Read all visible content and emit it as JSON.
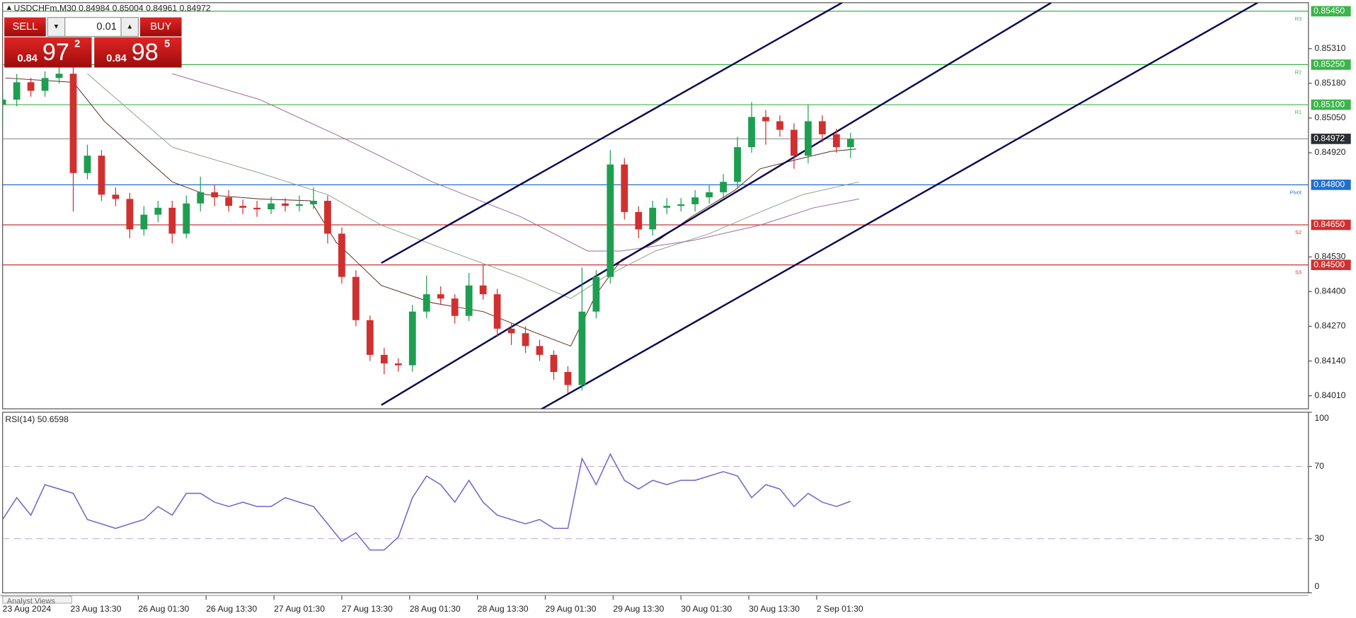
{
  "chart_data": [
    {
      "type": "candlestick",
      "title": "USDCHFm,M30  0.84984 0.85004 0.84961 0.84972",
      "x": [
        0,
        5,
        10,
        15,
        20,
        25,
        30,
        35,
        40,
        45,
        50,
        55,
        60,
        65,
        70,
        75,
        80,
        85,
        90,
        95,
        100,
        105,
        110,
        115,
        120,
        125,
        130,
        135,
        140,
        145,
        150,
        155,
        160,
        165,
        170,
        175,
        180,
        185,
        190,
        195,
        200,
        205,
        210,
        215,
        220,
        225,
        230,
        235,
        240,
        245,
        250,
        255,
        260,
        265,
        270,
        275,
        280,
        285,
        290,
        295,
        300
      ],
      "open": [
        0.851,
        0.85119,
        0.85184,
        0.85152,
        0.852,
        0.85216,
        0.84844,
        0.84909,
        0.84763,
        0.84747,
        0.84633,
        0.84688,
        0.84714,
        0.84617,
        0.8473,
        0.84772,
        0.84753,
        0.84721,
        0.84714,
        0.84708,
        0.8473,
        0.84721,
        0.84727,
        0.8474,
        0.84617,
        0.84455,
        0.84293,
        0.84163,
        0.84131,
        0.84124,
        0.84325,
        0.8439,
        0.84374,
        0.84309,
        0.84423,
        0.8439,
        0.84261,
        0.84244,
        0.84196,
        0.84163,
        0.84099,
        0.8405,
        0.84325,
        0.84455,
        0.84876,
        0.84698,
        0.84633,
        0.84714,
        0.84721,
        0.84727,
        0.84753,
        0.84772,
        0.84811,
        0.84941,
        0.85054,
        0.85038,
        0.85006,
        0.84909,
        0.85038,
        0.84989,
        0.84941
      ],
      "high": [
        0.8515,
        0.85215,
        0.852,
        0.85225,
        0.8525,
        0.8524,
        0.8495,
        0.8493,
        0.8479,
        0.8477,
        0.8472,
        0.8474,
        0.8474,
        0.8476,
        0.8483,
        0.848,
        0.8478,
        0.84745,
        0.8474,
        0.84755,
        0.8475,
        0.8476,
        0.8479,
        0.8476,
        0.8464,
        0.8448,
        0.8431,
        0.8419,
        0.8415,
        0.8435,
        0.8446,
        0.8442,
        0.8439,
        0.8447,
        0.845,
        0.8441,
        0.8428,
        0.8427,
        0.8422,
        0.8418,
        0.8412,
        0.8449,
        0.8448,
        0.8493,
        0.849,
        0.8472,
        0.8474,
        0.8475,
        0.8475,
        0.8478,
        0.848,
        0.8484,
        0.8498,
        0.8511,
        0.8508,
        0.8506,
        0.8503,
        0.851,
        0.8506,
        0.8501,
        0.84995
      ],
      "low": [
        0.8503,
        0.85095,
        0.8513,
        0.8513,
        0.8518,
        0.847,
        0.8482,
        0.8474,
        0.8472,
        0.846,
        0.8461,
        0.8466,
        0.8458,
        0.846,
        0.847,
        0.8472,
        0.847,
        0.8469,
        0.8468,
        0.8469,
        0.847,
        0.847,
        0.8471,
        0.8458,
        0.8443,
        0.8427,
        0.8414,
        0.8409,
        0.841,
        0.841,
        0.843,
        0.8435,
        0.8428,
        0.8429,
        0.8437,
        0.8423,
        0.842,
        0.8417,
        0.8414,
        0.8407,
        0.8402,
        0.8403,
        0.843,
        0.8443,
        0.8467,
        0.846,
        0.8461,
        0.8469,
        0.847,
        0.847,
        0.8473,
        0.8475,
        0.8479,
        0.8492,
        0.8495,
        0.8498,
        0.8486,
        0.8488,
        0.8496,
        0.8492,
        0.849
      ],
      "close": [
        0.85119,
        0.85184,
        0.85152,
        0.852,
        0.85216,
        0.84844,
        0.84909,
        0.84763,
        0.84747,
        0.84633,
        0.84688,
        0.84714,
        0.84617,
        0.8473,
        0.84772,
        0.84753,
        0.84721,
        0.84714,
        0.84708,
        0.8473,
        0.84721,
        0.84727,
        0.8474,
        0.84617,
        0.84455,
        0.84293,
        0.84163,
        0.84131,
        0.84124,
        0.84325,
        0.8439,
        0.84374,
        0.84309,
        0.84423,
        0.8439,
        0.84261,
        0.84244,
        0.84196,
        0.84163,
        0.84099,
        0.8405,
        0.84325,
        0.84455,
        0.84876,
        0.84698,
        0.84633,
        0.84714,
        0.84721,
        0.84727,
        0.84753,
        0.84772,
        0.84811,
        0.84941,
        0.85054,
        0.85038,
        0.85006,
        0.84909,
        0.85038,
        0.84989,
        0.84941,
        0.84972
      ],
      "up_color": "#1e9e50",
      "down_color": "#d03030",
      "overlays": [
        {
          "color": "#5a2a1a",
          "x": [
            1,
            25,
            36,
            60,
            72,
            91,
            109,
            118,
            134,
            152,
            170,
            189,
            201,
            210,
            219,
            231,
            244,
            259,
            268,
            280,
            293,
            302
          ],
          "values": [
            0.852,
            0.85184,
            0.85038,
            0.84811,
            0.84763,
            0.84747,
            0.8474,
            0.84585,
            0.84423,
            0.84358,
            0.84325,
            0.84244,
            0.84196,
            0.8439,
            0.8452,
            0.84585,
            0.84682,
            0.84779,
            0.8486,
            0.84892,
            0.84925,
            0.84934
          ]
        },
        {
          "color": "#8aa08a",
          "x": [
            30,
            60,
            91,
            115,
            134,
            158,
            183,
            201,
            213,
            231,
            250,
            268,
            283,
            303
          ],
          "values": [
            0.85216,
            0.84941,
            0.84844,
            0.84763,
            0.84649,
            0.84552,
            0.84455,
            0.84374,
            0.84455,
            0.84552,
            0.84617,
            0.84698,
            0.84763,
            0.84811
          ]
        },
        {
          "color": "#9b6b9b",
          "x": [
            60,
            91,
            121,
            152,
            183,
            207,
            219,
            244,
            268,
            287,
            303
          ],
          "values": [
            0.85216,
            0.85119,
            0.84973,
            0.84811,
            0.84682,
            0.84552,
            0.84552,
            0.84591,
            0.84649,
            0.84714,
            0.84747
          ]
        }
      ],
      "channels": [
        {
          "x": [
            134,
            297
          ],
          "values": [
            0.84507,
            0.85482
          ]
        },
        {
          "x": [
            134,
            371
          ],
          "values": [
            0.83975,
            0.85482
          ]
        },
        {
          "x": [
            190,
            444
          ],
          "values": [
            0.83956,
            0.85482
          ]
        }
      ],
      "channel_color": "#0a0a50",
      "levels": [
        {
          "name": "R3",
          "value": 0.8545,
          "label": "0.85450",
          "color": "#3cb44b"
        },
        {
          "name": "R2",
          "value": 0.8525,
          "label": "0.85250",
          "color": "#3cb44b"
        },
        {
          "name": "R1",
          "value": 0.851,
          "label": "0.85100",
          "color": "#3cb44b"
        },
        {
          "name": "Pivot",
          "value": 0.848,
          "label": "0.84800",
          "color": "#1f6fd0"
        },
        {
          "name": "S2",
          "value": 0.8465,
          "label": "0.84650",
          "color": "#d03030"
        },
        {
          "name": "S3",
          "value": 0.845,
          "label": "0.84500",
          "color": "#d03030"
        }
      ],
      "current": 0.84972,
      "xlim": [
        0,
        462
      ],
      "ylim": [
        0.83961,
        0.85482
      ],
      "yticks": [
        {
          "value": 0.8531,
          "label": "0.85310"
        },
        {
          "value": 0.8518,
          "label": "0.85180"
        },
        {
          "value": 0.8505,
          "label": "0.85050"
        },
        {
          "value": 0.8492,
          "label": "0.84920"
        },
        {
          "value": 0.8453,
          "label": "0.84530"
        },
        {
          "value": 0.844,
          "label": "0.84400"
        },
        {
          "value": 0.8427,
          "label": "0.84270"
        },
        {
          "value": 0.8414,
          "label": "0.84140"
        },
        {
          "value": 0.8401,
          "label": "0.84010"
        }
      ]
    },
    {
      "type": "line",
      "title": "RSI(14) 50.6598",
      "x": [
        0,
        5,
        10,
        15,
        20,
        25,
        30,
        35,
        40,
        45,
        50,
        55,
        60,
        65,
        70,
        75,
        80,
        85,
        90,
        95,
        100,
        105,
        110,
        115,
        120,
        125,
        130,
        135,
        140,
        145,
        150,
        155,
        160,
        165,
        170,
        175,
        180,
        185,
        190,
        195,
        200,
        205,
        210,
        215,
        220,
        225,
        230,
        235,
        240,
        245,
        250,
        255,
        260,
        265,
        270,
        275,
        280,
        285,
        290,
        295,
        300
      ],
      "series": [
        {
          "color": "#7b68c8",
          "values": [
            40.6,
            52.7,
            43.0,
            59.9,
            57.5,
            55.1,
            40.6,
            38.2,
            35.7,
            38.2,
            40.6,
            47.8,
            43.0,
            55.1,
            55.1,
            50.2,
            47.8,
            50.2,
            47.8,
            47.8,
            52.7,
            50.2,
            47.8,
            38.2,
            28.5,
            33.3,
            23.7,
            23.7,
            30.9,
            52.7,
            64.7,
            59.9,
            50.2,
            62.3,
            50.2,
            43.0,
            40.6,
            38.2,
            40.6,
            35.7,
            35.7,
            74.4,
            59.9,
            76.8,
            62.3,
            57.5,
            62.3,
            59.9,
            62.3,
            62.3,
            64.7,
            67.1,
            64.7,
            52.7,
            59.9,
            57.5,
            47.8,
            55.1,
            50.2,
            47.8,
            50.66
          ]
        }
      ],
      "levels": [
        30,
        70
      ],
      "xlim": [
        0,
        462
      ],
      "ylim": [
        0,
        100
      ],
      "yticks": [
        0,
        30,
        70,
        100
      ],
      "xticks": [
        {
          "value": 0,
          "label": "23 Aug 2024"
        },
        {
          "value": 24,
          "label": "23 Aug 13:30"
        },
        {
          "value": 48,
          "label": "26 Aug 01:30"
        },
        {
          "value": 72,
          "label": "26 Aug 13:30"
        },
        {
          "value": 96,
          "label": "27 Aug 01:30"
        },
        {
          "value": 120,
          "label": "27 Aug 13:30"
        },
        {
          "value": 144,
          "label": "28 Aug 01:30"
        },
        {
          "value": 168,
          "label": "28 Aug 13:30"
        },
        {
          "value": 192,
          "label": "29 Aug 01:30"
        },
        {
          "value": 216,
          "label": "29 Aug 13:30"
        },
        {
          "value": 240,
          "label": "30 Aug 01:30"
        },
        {
          "value": 264,
          "label": "30 Aug 13:30"
        },
        {
          "value": 288,
          "label": "2 Sep 01:30"
        }
      ]
    }
  ],
  "trade_panel": {
    "sell": "SELL",
    "buy": "BUY",
    "lot": "0.01",
    "sell_price": {
      "big": "0.84",
      "pips": "97",
      "point": "2"
    },
    "buy_price": {
      "big": "0.84",
      "pips": "98",
      "point": "5"
    }
  },
  "tabs": [
    "Analyst Views"
  ]
}
